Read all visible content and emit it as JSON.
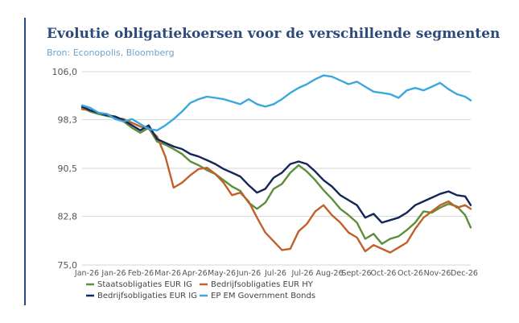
{
  "header": {
    "title": "Evolutie obligatiekoersen voor de verschillende segmenten",
    "source": "Bron: Econopolis, Bloomberg"
  },
  "colors": {
    "accent": "#2b4a78",
    "title": "#2c4a7c",
    "source": "#6fa4cf",
    "grid": "#d6d6d6"
  },
  "chart_data": {
    "type": "line",
    "title": "Evolutie obligatiekoersen voor de verschillende segmenten",
    "xlabel": "",
    "ylabel": "",
    "ylim": [
      75.0,
      106.0
    ],
    "y_ticks": [
      "75,0",
      "82,8",
      "90,5",
      "98,3",
      "106,0"
    ],
    "y_tick_values": [
      75.0,
      82.8,
      90.5,
      98.3,
      106.0
    ],
    "x_ticks": [
      "Jan-26",
      "Jan-26",
      "Feb-26",
      "Mar-26",
      "Apr-26",
      "May-26",
      "Jun-26",
      "Jul-26",
      "Jul-26",
      "Aug-26",
      "Sept-26",
      "Oct-26",
      "Oct-26",
      "Nov-26",
      "Dec-26"
    ],
    "grid": true,
    "legend_position": "bottom",
    "x_range": [
      0,
      14
    ],
    "series": [
      {
        "name": "Staatsobligaties EUR IG",
        "color": "#5b8f3a",
        "x": [
          0,
          0.3,
          0.6,
          0.9,
          1.2,
          1.5,
          1.8,
          2.1,
          2.4,
          2.7,
          3.0,
          3.3,
          3.6,
          3.9,
          4.2,
          4.5,
          4.8,
          5.1,
          5.4,
          5.7,
          6.0,
          6.3,
          6.6,
          6.9,
          7.2,
          7.5,
          7.8,
          8.1,
          8.4,
          8.7,
          9.0,
          9.3,
          9.6,
          9.9,
          10.2,
          10.5,
          10.8,
          11.1,
          11.4,
          11.7,
          12.0,
          12.3,
          12.6,
          12.9,
          13.2,
          13.5,
          13.8,
          14.0
        ],
        "y": [
          100.2,
          99.6,
          99.2,
          98.9,
          98.6,
          98.0,
          97.0,
          96.2,
          97.0,
          94.8,
          94.3,
          93.6,
          92.8,
          91.6,
          91.0,
          90.2,
          89.6,
          88.6,
          87.6,
          86.9,
          85.0,
          84.0,
          85.0,
          87.2,
          88.0,
          89.8,
          91.0,
          90.0,
          88.6,
          87.0,
          85.6,
          84.0,
          83.0,
          81.8,
          79.2,
          80.0,
          78.4,
          79.2,
          79.6,
          80.6,
          81.8,
          83.6,
          83.4,
          84.2,
          84.8,
          84.4,
          83.0,
          81.0
        ]
      },
      {
        "name": "Bedrijfsobligaties EUR HY",
        "color": "#c0612b",
        "x": [
          0,
          0.3,
          0.6,
          0.9,
          1.2,
          1.5,
          1.8,
          2.1,
          2.4,
          2.7,
          3.0,
          3.3,
          3.6,
          3.9,
          4.2,
          4.5,
          4.8,
          5.1,
          5.4,
          5.7,
          6.0,
          6.3,
          6.6,
          6.9,
          7.2,
          7.5,
          7.8,
          8.1,
          8.4,
          8.7,
          9.0,
          9.3,
          9.6,
          9.9,
          10.2,
          10.5,
          10.8,
          11.1,
          11.4,
          11.7,
          12.0,
          12.3,
          12.6,
          12.9,
          13.2,
          13.5,
          13.8,
          14.0
        ],
        "y": [
          100.0,
          99.8,
          99.4,
          99.2,
          98.6,
          98.4,
          97.8,
          97.2,
          96.8,
          95.6,
          92.4,
          87.4,
          88.2,
          89.4,
          90.4,
          90.6,
          89.6,
          88.2,
          86.2,
          86.6,
          85.2,
          82.6,
          80.2,
          78.8,
          77.4,
          77.6,
          80.4,
          81.6,
          83.6,
          84.6,
          83.0,
          81.8,
          80.2,
          79.4,
          77.2,
          78.2,
          77.6,
          77.0,
          77.8,
          78.6,
          80.8,
          82.6,
          83.6,
          84.6,
          85.2,
          84.2,
          84.6,
          84.0
        ]
      },
      {
        "name": "Bedrijfsobligaties EUR IG",
        "color": "#14255a",
        "x": [
          0,
          0.3,
          0.6,
          0.9,
          1.2,
          1.5,
          1.8,
          2.1,
          2.4,
          2.7,
          3.0,
          3.3,
          3.6,
          3.9,
          4.2,
          4.5,
          4.8,
          5.1,
          5.4,
          5.7,
          6.0,
          6.3,
          6.6,
          6.9,
          7.2,
          7.5,
          7.8,
          8.1,
          8.4,
          8.7,
          9.0,
          9.3,
          9.6,
          9.9,
          10.2,
          10.5,
          10.8,
          11.1,
          11.4,
          11.7,
          12.0,
          12.3,
          12.6,
          12.9,
          13.2,
          13.5,
          13.8,
          14.0
        ],
        "y": [
          100.4,
          99.8,
          99.4,
          99.0,
          98.8,
          98.2,
          97.4,
          96.6,
          97.4,
          95.2,
          94.6,
          94.0,
          93.6,
          92.8,
          92.4,
          91.8,
          91.2,
          90.4,
          89.8,
          89.2,
          87.8,
          86.6,
          87.2,
          89.0,
          89.8,
          91.2,
          91.6,
          91.2,
          90.0,
          88.6,
          87.6,
          86.2,
          85.4,
          84.6,
          82.6,
          83.2,
          81.8,
          82.2,
          82.6,
          83.4,
          84.6,
          85.2,
          85.8,
          86.4,
          86.8,
          86.2,
          86.0,
          84.6
        ]
      },
      {
        "name": "EP EM Government Bonds",
        "color": "#3aa8df",
        "x": [
          0,
          0.3,
          0.6,
          0.9,
          1.2,
          1.5,
          1.8,
          2.1,
          2.4,
          2.7,
          3.0,
          3.3,
          3.6,
          3.9,
          4.2,
          4.5,
          4.8,
          5.1,
          5.4,
          5.7,
          6.0,
          6.3,
          6.6,
          6.9,
          7.2,
          7.5,
          7.8,
          8.1,
          8.4,
          8.7,
          9.0,
          9.3,
          9.6,
          9.9,
          10.2,
          10.5,
          10.8,
          11.1,
          11.4,
          11.7,
          12.0,
          12.3,
          12.6,
          12.9,
          13.2,
          13.5,
          13.8,
          14.0
        ],
        "y": [
          100.6,
          100.2,
          99.4,
          99.2,
          98.4,
          98.0,
          98.4,
          97.6,
          96.8,
          96.6,
          97.4,
          98.4,
          99.6,
          101.0,
          101.6,
          102.0,
          101.8,
          101.6,
          101.2,
          100.8,
          101.6,
          100.8,
          100.4,
          100.8,
          101.6,
          102.6,
          103.4,
          104.0,
          104.8,
          105.4,
          105.2,
          104.6,
          104.0,
          104.4,
          103.6,
          102.8,
          102.6,
          102.4,
          101.8,
          103.0,
          103.4,
          103.0,
          103.6,
          104.2,
          103.2,
          102.4,
          102.0,
          101.4
        ]
      }
    ]
  }
}
